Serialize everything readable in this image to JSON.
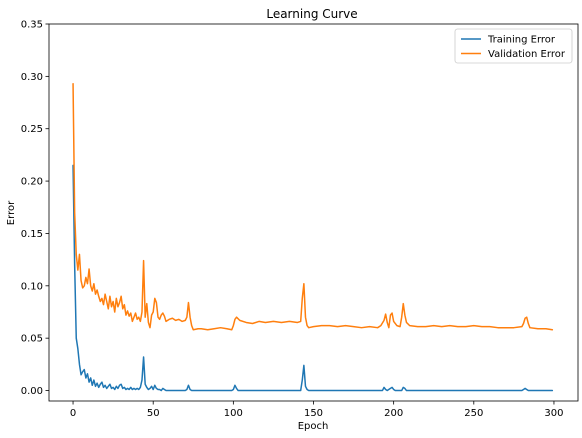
{
  "chart_data": {
    "type": "line",
    "title": "Learning Curve",
    "xlabel": "Epoch",
    "ylabel": "Error",
    "xlim": [
      -15,
      315
    ],
    "ylim": [
      -0.01,
      0.35
    ],
    "xticks": [
      "0",
      "50",
      "100",
      "150",
      "200",
      "250",
      "300"
    ],
    "yticks": [
      "0.00",
      "0.05",
      "0.10",
      "0.15",
      "0.20",
      "0.25",
      "0.30",
      "0.35"
    ],
    "grid": false,
    "legend_position": "top-right",
    "series": [
      {
        "name": "Training Error",
        "color": "#1f77b4",
        "points": [
          [
            0,
            0.215
          ],
          [
            1,
            0.12
          ],
          [
            2,
            0.05
          ],
          [
            3,
            0.04
          ],
          [
            4,
            0.025
          ],
          [
            5,
            0.015
          ],
          [
            6,
            0.018
          ],
          [
            7,
            0.02
          ],
          [
            8,
            0.012
          ],
          [
            9,
            0.016
          ],
          [
            10,
            0.008
          ],
          [
            11,
            0.012
          ],
          [
            12,
            0.005
          ],
          [
            13,
            0.01
          ],
          [
            14,
            0.004
          ],
          [
            15,
            0.007
          ],
          [
            16,
            0.003
          ],
          [
            17,
            0.006
          ],
          [
            18,
            0.008
          ],
          [
            19,
            0.003
          ],
          [
            20,
            0.005
          ],
          [
            21,
            0.002
          ],
          [
            22,
            0.004
          ],
          [
            23,
            0.006
          ],
          [
            24,
            0.002
          ],
          [
            25,
            0.003
          ],
          [
            26,
            0.001
          ],
          [
            27,
            0.004
          ],
          [
            28,
            0.002
          ],
          [
            29,
            0.005
          ],
          [
            30,
            0.006
          ],
          [
            31,
            0.002
          ],
          [
            32,
            0.003
          ],
          [
            33,
            0.001
          ],
          [
            34,
            0.002
          ],
          [
            35,
            0.001
          ],
          [
            36,
            0.003
          ],
          [
            37,
            0.001
          ],
          [
            38,
            0.002
          ],
          [
            39,
            0.001
          ],
          [
            40,
            0.002
          ],
          [
            41,
            0.001
          ],
          [
            42,
            0.003
          ],
          [
            43,
            0.01
          ],
          [
            44,
            0.032
          ],
          [
            45,
            0.006
          ],
          [
            46,
            0.003
          ],
          [
            47,
            0.001
          ],
          [
            48,
            0.002
          ],
          [
            49,
            0.004
          ],
          [
            50,
            0.001
          ],
          [
            51,
            0.005
          ],
          [
            52,
            0.002
          ],
          [
            53,
            0.001
          ],
          [
            54,
            0.001
          ],
          [
            55,
            0.0
          ],
          [
            56,
            0.002
          ],
          [
            57,
            0.001
          ],
          [
            58,
            0.0
          ],
          [
            60,
            0.0
          ],
          [
            65,
            0.0
          ],
          [
            70,
            0.0
          ],
          [
            71,
            0.001
          ],
          [
            72,
            0.005
          ],
          [
            73,
            0.001
          ],
          [
            74,
            0.0
          ],
          [
            80,
            0.0
          ],
          [
            90,
            0.0
          ],
          [
            99,
            0.0
          ],
          [
            100,
            0.001
          ],
          [
            101,
            0.005
          ],
          [
            102,
            0.002
          ],
          [
            103,
            0.0
          ],
          [
            110,
            0.0
          ],
          [
            120,
            0.0
          ],
          [
            130,
            0.0
          ],
          [
            140,
            0.0
          ],
          [
            142,
            0.0
          ],
          [
            143,
            0.01
          ],
          [
            144,
            0.024
          ],
          [
            145,
            0.004
          ],
          [
            146,
            0.001
          ],
          [
            147,
            0.0
          ],
          [
            150,
            0.0
          ],
          [
            160,
            0.0
          ],
          [
            170,
            0.0
          ],
          [
            180,
            0.0
          ],
          [
            190,
            0.0
          ],
          [
            193,
            0.0
          ],
          [
            194,
            0.003
          ],
          [
            195,
            0.001
          ],
          [
            196,
            0.0
          ],
          [
            198,
            0.002
          ],
          [
            199,
            0.003
          ],
          [
            200,
            0.001
          ],
          [
            201,
            0.0
          ],
          [
            205,
            0.0
          ],
          [
            206,
            0.003
          ],
          [
            207,
            0.002
          ],
          [
            208,
            0.0
          ],
          [
            220,
            0.0
          ],
          [
            240,
            0.0
          ],
          [
            260,
            0.0
          ],
          [
            280,
            0.0
          ],
          [
            281,
            0.001
          ],
          [
            282,
            0.002
          ],
          [
            283,
            0.001
          ],
          [
            284,
            0.0
          ],
          [
            290,
            0.0
          ],
          [
            299,
            0.0
          ]
        ]
      },
      {
        "name": "Validation Error",
        "color": "#ff7f0e",
        "points": [
          [
            0,
            0.293
          ],
          [
            1,
            0.17
          ],
          [
            2,
            0.13
          ],
          [
            3,
            0.115
          ],
          [
            4,
            0.13
          ],
          [
            5,
            0.105
          ],
          [
            6,
            0.098
          ],
          [
            7,
            0.1
          ],
          [
            8,
            0.108
          ],
          [
            9,
            0.102
          ],
          [
            10,
            0.116
          ],
          [
            11,
            0.1
          ],
          [
            12,
            0.095
          ],
          [
            13,
            0.102
          ],
          [
            14,
            0.092
          ],
          [
            15,
            0.096
          ],
          [
            16,
            0.09
          ],
          [
            17,
            0.085
          ],
          [
            18,
            0.088
          ],
          [
            19,
            0.082
          ],
          [
            20,
            0.092
          ],
          [
            21,
            0.085
          ],
          [
            22,
            0.078
          ],
          [
            23,
            0.09
          ],
          [
            24,
            0.08
          ],
          [
            25,
            0.085
          ],
          [
            26,
            0.075
          ],
          [
            27,
            0.088
          ],
          [
            28,
            0.08
          ],
          [
            29,
            0.084
          ],
          [
            30,
            0.09
          ],
          [
            31,
            0.078
          ],
          [
            32,
            0.082
          ],
          [
            33,
            0.072
          ],
          [
            34,
            0.076
          ],
          [
            35,
            0.071
          ],
          [
            36,
            0.074
          ],
          [
            37,
            0.066
          ],
          [
            38,
            0.07
          ],
          [
            39,
            0.074
          ],
          [
            40,
            0.068
          ],
          [
            41,
            0.07
          ],
          [
            42,
            0.066
          ],
          [
            43,
            0.075
          ],
          [
            44,
            0.124
          ],
          [
            45,
            0.07
          ],
          [
            46,
            0.083
          ],
          [
            47,
            0.065
          ],
          [
            48,
            0.06
          ],
          [
            49,
            0.072
          ],
          [
            50,
            0.075
          ],
          [
            51,
            0.088
          ],
          [
            52,
            0.084
          ],
          [
            53,
            0.07
          ],
          [
            54,
            0.068
          ],
          [
            55,
            0.072
          ],
          [
            56,
            0.074
          ],
          [
            57,
            0.071
          ],
          [
            58,
            0.066
          ],
          [
            60,
            0.068
          ],
          [
            62,
            0.069
          ],
          [
            64,
            0.067
          ],
          [
            66,
            0.068
          ],
          [
            68,
            0.066
          ],
          [
            70,
            0.067
          ],
          [
            71,
            0.07
          ],
          [
            72,
            0.084
          ],
          [
            73,
            0.07
          ],
          [
            74,
            0.062
          ],
          [
            75,
            0.058
          ],
          [
            78,
            0.059
          ],
          [
            80,
            0.059
          ],
          [
            84,
            0.058
          ],
          [
            88,
            0.059
          ],
          [
            92,
            0.06
          ],
          [
            96,
            0.059
          ],
          [
            99,
            0.058
          ],
          [
            100,
            0.062
          ],
          [
            101,
            0.068
          ],
          [
            102,
            0.07
          ],
          [
            104,
            0.067
          ],
          [
            108,
            0.065
          ],
          [
            112,
            0.064
          ],
          [
            116,
            0.066
          ],
          [
            120,
            0.065
          ],
          [
            125,
            0.066
          ],
          [
            130,
            0.065
          ],
          [
            135,
            0.066
          ],
          [
            140,
            0.065
          ],
          [
            142,
            0.066
          ],
          [
            143,
            0.088
          ],
          [
            144,
            0.102
          ],
          [
            145,
            0.07
          ],
          [
            146,
            0.062
          ],
          [
            147,
            0.06
          ],
          [
            150,
            0.061
          ],
          [
            155,
            0.062
          ],
          [
            160,
            0.062
          ],
          [
            165,
            0.061
          ],
          [
            170,
            0.062
          ],
          [
            175,
            0.061
          ],
          [
            180,
            0.06
          ],
          [
            185,
            0.061
          ],
          [
            190,
            0.06
          ],
          [
            192,
            0.062
          ],
          [
            194,
            0.067
          ],
          [
            195,
            0.073
          ],
          [
            196,
            0.065
          ],
          [
            197,
            0.06
          ],
          [
            198,
            0.072
          ],
          [
            199,
            0.074
          ],
          [
            200,
            0.066
          ],
          [
            202,
            0.062
          ],
          [
            204,
            0.061
          ],
          [
            205,
            0.07
          ],
          [
            206,
            0.083
          ],
          [
            207,
            0.072
          ],
          [
            208,
            0.065
          ],
          [
            210,
            0.062
          ],
          [
            215,
            0.061
          ],
          [
            220,
            0.061
          ],
          [
            225,
            0.062
          ],
          [
            230,
            0.061
          ],
          [
            235,
            0.062
          ],
          [
            240,
            0.061
          ],
          [
            245,
            0.061
          ],
          [
            250,
            0.062
          ],
          [
            255,
            0.061
          ],
          [
            260,
            0.061
          ],
          [
            265,
            0.06
          ],
          [
            270,
            0.06
          ],
          [
            275,
            0.06
          ],
          [
            280,
            0.061
          ],
          [
            281,
            0.064
          ],
          [
            282,
            0.069
          ],
          [
            283,
            0.07
          ],
          [
            284,
            0.064
          ],
          [
            285,
            0.06
          ],
          [
            290,
            0.059
          ],
          [
            295,
            0.059
          ],
          [
            299,
            0.058
          ]
        ]
      }
    ]
  }
}
